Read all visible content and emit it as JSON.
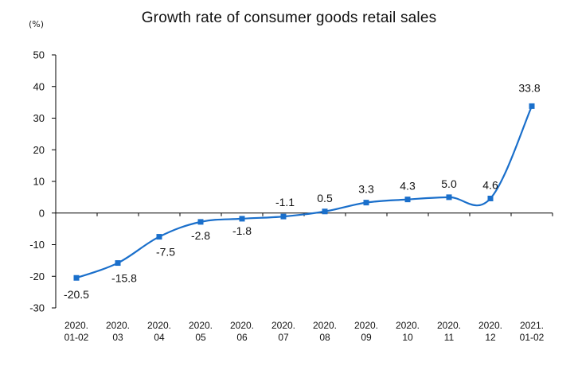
{
  "chart_data": {
    "type": "line",
    "title": "Growth rate of consumer goods retail sales",
    "unit": "(%)",
    "xlabel": "",
    "ylabel": "",
    "ylim": [
      -30,
      50
    ],
    "yticks": [
      50,
      40,
      30,
      20,
      10,
      0,
      -10,
      -20,
      -30
    ],
    "ytick_labels": [
      "50",
      "40",
      "30",
      "20",
      "10",
      "0",
      "-10",
      "-20",
      "-30"
    ],
    "grid": false,
    "legend": "none",
    "categories": [
      [
        "2020.",
        "01-02"
      ],
      [
        "2020.",
        "03"
      ],
      [
        "2020.",
        "04"
      ],
      [
        "2020.",
        "05"
      ],
      [
        "2020.",
        "06"
      ],
      [
        "2020.",
        "07"
      ],
      [
        "2020.",
        "08"
      ],
      [
        "2020.",
        "09"
      ],
      [
        "2020.",
        "10"
      ],
      [
        "2020.",
        "11"
      ],
      [
        "2020.",
        "12"
      ],
      [
        "2021.",
        "01-02"
      ]
    ],
    "values": [
      -20.5,
      -15.8,
      -7.5,
      -2.8,
      -1.8,
      -1.1,
      0.5,
      3.3,
      4.3,
      5.0,
      4.6,
      33.8
    ],
    "data_labels": [
      "-20.5",
      "-15.8",
      "-7.5",
      "-2.8",
      "-1.8",
      "-1.1",
      "0.5",
      "3.3",
      "4.3",
      "5.0",
      "4.6",
      "33.8"
    ],
    "line_color": "#1a6fcb"
  }
}
